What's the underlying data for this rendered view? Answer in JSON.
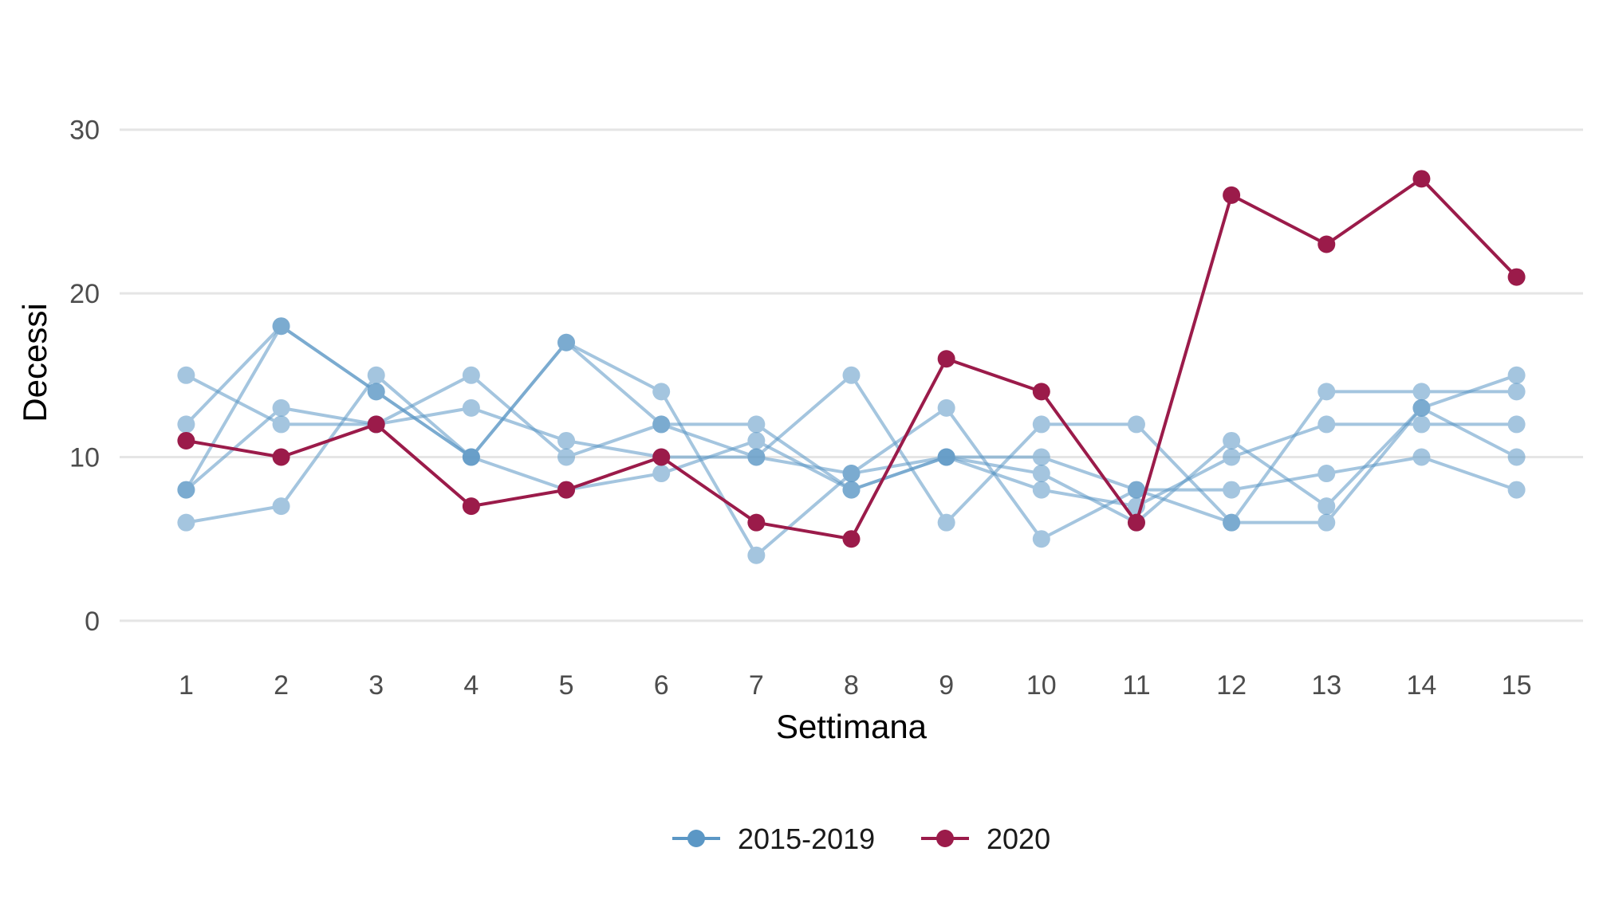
{
  "chart_data": {
    "type": "line",
    "title": "",
    "xlabel": "Settimana",
    "ylabel": "Decessi",
    "x": [
      1,
      2,
      3,
      4,
      5,
      6,
      7,
      8,
      9,
      10,
      11,
      12,
      13,
      14,
      15
    ],
    "xlim": [
      0.3,
      15.7
    ],
    "ylim": [
      -2,
      35
    ],
    "yticks": [
      0,
      10,
      20,
      30
    ],
    "grid": true,
    "legend_position": "bottom",
    "legend": [
      {
        "label": "2015-2019",
        "color": "#5b97c5"
      },
      {
        "label": "2020",
        "color": "#9b1b4a"
      }
    ],
    "series": [
      {
        "group": "2015-2019",
        "values": [
          15,
          12,
          12,
          13,
          11,
          10,
          10,
          15,
          6,
          12,
          12,
          6,
          6,
          13,
          15
        ]
      },
      {
        "group": "2015-2019",
        "values": [
          12,
          18,
          14,
          10,
          17,
          12,
          12,
          8,
          10,
          8,
          7,
          10,
          12,
          12,
          12
        ]
      },
      {
        "group": "2015-2019",
        "values": [
          8,
          13,
          12,
          15,
          10,
          12,
          10,
          9,
          13,
          5,
          8,
          6,
          14,
          14,
          14
        ]
      },
      {
        "group": "2015-2019",
        "values": [
          6,
          7,
          15,
          10,
          8,
          9,
          11,
          8,
          10,
          9,
          6,
          11,
          7,
          13,
          10
        ]
      },
      {
        "group": "2015-2019",
        "values": [
          8,
          18,
          14,
          10,
          17,
          14,
          4,
          9,
          10,
          10,
          8,
          8,
          9,
          10,
          8
        ]
      },
      {
        "group": "2020",
        "values": [
          11,
          10,
          12,
          7,
          8,
          10,
          6,
          5,
          16,
          14,
          6,
          26,
          23,
          27,
          21
        ]
      }
    ],
    "colors": {
      "past": "#5b97c5",
      "current": "#9b1b4a",
      "grid": "#e5e5e5"
    }
  }
}
